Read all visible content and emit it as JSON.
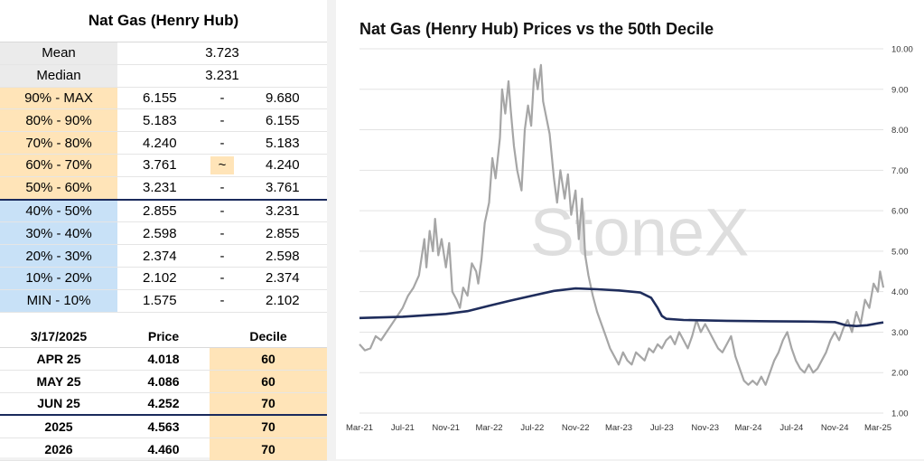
{
  "table": {
    "title": "Nat Gas (Henry Hub)",
    "mean_label": "Mean",
    "mean": "3.723",
    "median_label": "Median",
    "median": "3.231",
    "deciles": [
      {
        "label": "90% - MAX",
        "low": "6.155",
        "sep": "-",
        "high": "9.680",
        "side": "up"
      },
      {
        "label": "80% - 90%",
        "low": "5.183",
        "sep": "-",
        "high": "6.155",
        "side": "up"
      },
      {
        "label": "70% - 80%",
        "low": "4.240",
        "sep": "-",
        "high": "5.183",
        "side": "up"
      },
      {
        "label": "60% - 70%",
        "low": "3.761",
        "sep": "~",
        "high": "4.240",
        "side": "up"
      },
      {
        "label": "50% - 60%",
        "low": "3.231",
        "sep": "-",
        "high": "3.761",
        "side": "up"
      },
      {
        "label": "40% - 50%",
        "low": "2.855",
        "sep": "-",
        "high": "3.231",
        "side": "down"
      },
      {
        "label": "30% - 40%",
        "low": "2.598",
        "sep": "-",
        "high": "2.855",
        "side": "down"
      },
      {
        "label": "20% - 30%",
        "low": "2.374",
        "sep": "-",
        "high": "2.598",
        "side": "down"
      },
      {
        "label": "10% - 20%",
        "low": "2.102",
        "sep": "-",
        "high": "2.374",
        "side": "down"
      },
      {
        "label": "MIN - 10%",
        "low": "1.575",
        "sep": "-",
        "high": "2.102",
        "side": "down"
      }
    ],
    "futures_header": {
      "date": "3/17/2025",
      "price": "Price",
      "decile": "Decile"
    },
    "futures": [
      {
        "contract": "APR 25",
        "price": "4.018",
        "decile": "60"
      },
      {
        "contract": "MAY 25",
        "price": "4.086",
        "decile": "60"
      },
      {
        "contract": "JUN 25",
        "price": "4.252",
        "decile": "70"
      },
      {
        "contract": "2025",
        "price": "4.563",
        "decile": "70"
      },
      {
        "contract": "2026",
        "price": "4.460",
        "decile": "70"
      }
    ]
  },
  "chart_data": {
    "type": "line",
    "title": "Nat Gas (Henry Hub) Prices vs the 50th Decile",
    "watermark": "StoneX",
    "ylim": [
      1.0,
      10.0
    ],
    "yticks": [
      "1.00",
      "2.00",
      "3.00",
      "4.00",
      "5.00",
      "6.00",
      "7.00",
      "8.00",
      "9.00",
      "10.00"
    ],
    "xlim": [
      0,
      48.5
    ],
    "xticks": [
      {
        "x": 0,
        "label": "Mar-21"
      },
      {
        "x": 4,
        "label": "Jul-21"
      },
      {
        "x": 8,
        "label": "Nov-21"
      },
      {
        "x": 12,
        "label": "Mar-22"
      },
      {
        "x": 16,
        "label": "Jul-22"
      },
      {
        "x": 20,
        "label": "Nov-22"
      },
      {
        "x": 24,
        "label": "Mar-23"
      },
      {
        "x": 28,
        "label": "Jul-23"
      },
      {
        "x": 32,
        "label": "Nov-23"
      },
      {
        "x": 36,
        "label": "Mar-24"
      },
      {
        "x": 40,
        "label": "Jul-24"
      },
      {
        "x": 44,
        "label": "Nov-24"
      },
      {
        "x": 48,
        "label": "Mar-25"
      }
    ],
    "colors": {
      "price": "#a6a6a6",
      "decile": "#1f2d5c"
    },
    "series": [
      {
        "key": "price",
        "points": [
          [
            0,
            2.7
          ],
          [
            0.5,
            2.55
          ],
          [
            1,
            2.6
          ],
          [
            1.5,
            2.9
          ],
          [
            2,
            2.8
          ],
          [
            2.5,
            3.0
          ],
          [
            3,
            3.2
          ],
          [
            3.5,
            3.4
          ],
          [
            4,
            3.6
          ],
          [
            4.5,
            3.9
          ],
          [
            5,
            4.1
          ],
          [
            5.5,
            4.4
          ],
          [
            6,
            5.3
          ],
          [
            6.2,
            4.6
          ],
          [
            6.5,
            5.5
          ],
          [
            6.8,
            5.0
          ],
          [
            7,
            5.8
          ],
          [
            7.3,
            4.9
          ],
          [
            7.6,
            5.3
          ],
          [
            8,
            4.6
          ],
          [
            8.3,
            5.2
          ],
          [
            8.6,
            4.0
          ],
          [
            9,
            3.8
          ],
          [
            9.3,
            3.6
          ],
          [
            9.6,
            4.1
          ],
          [
            10,
            3.9
          ],
          [
            10.4,
            4.7
          ],
          [
            10.8,
            4.5
          ],
          [
            11,
            4.2
          ],
          [
            11.3,
            4.8
          ],
          [
            11.6,
            5.7
          ],
          [
            12,
            6.2
          ],
          [
            12.3,
            7.3
          ],
          [
            12.6,
            6.8
          ],
          [
            13,
            7.8
          ],
          [
            13.2,
            9.0
          ],
          [
            13.5,
            8.4
          ],
          [
            13.8,
            9.2
          ],
          [
            14,
            8.5
          ],
          [
            14.3,
            7.6
          ],
          [
            14.6,
            7.0
          ],
          [
            15,
            6.5
          ],
          [
            15.3,
            8.0
          ],
          [
            15.6,
            8.6
          ],
          [
            15.9,
            8.1
          ],
          [
            16.2,
            9.5
          ],
          [
            16.5,
            9.0
          ],
          [
            16.8,
            9.6
          ],
          [
            17,
            8.7
          ],
          [
            17.3,
            8.3
          ],
          [
            17.6,
            7.9
          ],
          [
            18,
            6.8
          ],
          [
            18.3,
            6.2
          ],
          [
            18.6,
            7.0
          ],
          [
            19,
            6.3
          ],
          [
            19.3,
            6.9
          ],
          [
            19.6,
            5.9
          ],
          [
            20,
            6.5
          ],
          [
            20.3,
            5.3
          ],
          [
            20.6,
            6.3
          ],
          [
            20.9,
            4.9
          ],
          [
            21.2,
            4.4
          ],
          [
            21.6,
            3.9
          ],
          [
            22,
            3.5
          ],
          [
            22.4,
            3.2
          ],
          [
            22.8,
            2.9
          ],
          [
            23.2,
            2.6
          ],
          [
            23.6,
            2.4
          ],
          [
            24,
            2.2
          ],
          [
            24.4,
            2.5
          ],
          [
            24.8,
            2.3
          ],
          [
            25.2,
            2.2
          ],
          [
            25.6,
            2.5
          ],
          [
            26,
            2.4
          ],
          [
            26.4,
            2.3
          ],
          [
            26.8,
            2.6
          ],
          [
            27.2,
            2.5
          ],
          [
            27.6,
            2.7
          ],
          [
            28,
            2.6
          ],
          [
            28.4,
            2.8
          ],
          [
            28.8,
            2.9
          ],
          [
            29.2,
            2.7
          ],
          [
            29.6,
            3.0
          ],
          [
            30,
            2.8
          ],
          [
            30.4,
            2.6
          ],
          [
            30.8,
            2.9
          ],
          [
            31.2,
            3.3
          ],
          [
            31.6,
            3.0
          ],
          [
            32,
            3.2
          ],
          [
            32.4,
            3.0
          ],
          [
            32.8,
            2.8
          ],
          [
            33.2,
            2.6
          ],
          [
            33.6,
            2.5
          ],
          [
            34,
            2.7
          ],
          [
            34.4,
            2.9
          ],
          [
            34.8,
            2.4
          ],
          [
            35.2,
            2.1
          ],
          [
            35.6,
            1.8
          ],
          [
            36,
            1.7
          ],
          [
            36.4,
            1.8
          ],
          [
            36.8,
            1.7
          ],
          [
            37.2,
            1.9
          ],
          [
            37.6,
            1.7
          ],
          [
            38,
            2.0
          ],
          [
            38.4,
            2.3
          ],
          [
            38.8,
            2.5
          ],
          [
            39.2,
            2.8
          ],
          [
            39.6,
            3.0
          ],
          [
            40,
            2.6
          ],
          [
            40.4,
            2.3
          ],
          [
            40.8,
            2.1
          ],
          [
            41.2,
            2.0
          ],
          [
            41.6,
            2.2
          ],
          [
            42,
            2.0
          ],
          [
            42.4,
            2.1
          ],
          [
            42.8,
            2.3
          ],
          [
            43.2,
            2.5
          ],
          [
            43.6,
            2.8
          ],
          [
            44,
            3.0
          ],
          [
            44.4,
            2.8
          ],
          [
            44.8,
            3.1
          ],
          [
            45.2,
            3.3
          ],
          [
            45.6,
            3.0
          ],
          [
            46,
            3.5
          ],
          [
            46.4,
            3.2
          ],
          [
            46.8,
            3.8
          ],
          [
            47.2,
            3.6
          ],
          [
            47.6,
            4.2
          ],
          [
            48,
            4.0
          ],
          [
            48.2,
            4.5
          ],
          [
            48.5,
            4.1
          ]
        ]
      },
      {
        "key": "decile",
        "points": [
          [
            0,
            3.35
          ],
          [
            4,
            3.38
          ],
          [
            8,
            3.45
          ],
          [
            10,
            3.52
          ],
          [
            12,
            3.65
          ],
          [
            14,
            3.78
          ],
          [
            16,
            3.9
          ],
          [
            18,
            4.02
          ],
          [
            20,
            4.08
          ],
          [
            22,
            4.06
          ],
          [
            24,
            4.03
          ],
          [
            26,
            3.98
          ],
          [
            27,
            3.85
          ],
          [
            27.6,
            3.6
          ],
          [
            28,
            3.4
          ],
          [
            28.4,
            3.33
          ],
          [
            30,
            3.3
          ],
          [
            34,
            3.28
          ],
          [
            38,
            3.27
          ],
          [
            42,
            3.26
          ],
          [
            44,
            3.25
          ],
          [
            45,
            3.17
          ],
          [
            46,
            3.15
          ],
          [
            47,
            3.17
          ],
          [
            48,
            3.22
          ],
          [
            48.5,
            3.24
          ]
        ]
      }
    ]
  }
}
